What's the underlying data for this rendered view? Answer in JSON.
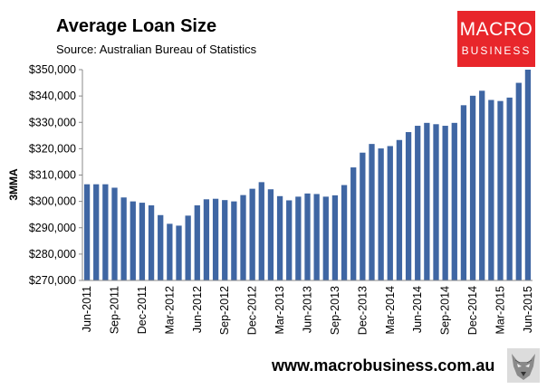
{
  "header": {
    "title": "Average Loan Size",
    "source": "Source: Australian Bureau of Statistics"
  },
  "logo": {
    "line1": "MACRO",
    "line2": "BUSINESS"
  },
  "footer": {
    "url": "www.macrobusiness.com.au"
  },
  "colors": {
    "bar": "#3f66a3",
    "logo_bg": "#e8262b"
  },
  "icons": {
    "mascot": "wolf-icon"
  },
  "chart_data": {
    "type": "bar",
    "title": "Average Loan Size",
    "ylabel": "3MMA",
    "xlabel": "",
    "ylim": [
      270000,
      350000
    ],
    "yticks": [
      270000,
      280000,
      290000,
      300000,
      310000,
      320000,
      330000,
      340000,
      350000
    ],
    "ytick_labels": [
      "$270,000",
      "$280,000",
      "$290,000",
      "$300,000",
      "$310,000",
      "$320,000",
      "$330,000",
      "$340,000",
      "$350,000"
    ],
    "xtick_labels": [
      {
        "index": 0,
        "label": "Jun-2011"
      },
      {
        "index": 3,
        "label": "Sep-2011"
      },
      {
        "index": 6,
        "label": "Dec-2011"
      },
      {
        "index": 9,
        "label": "Mar-2012"
      },
      {
        "index": 12,
        "label": "Jun-2012"
      },
      {
        "index": 15,
        "label": "Sep-2012"
      },
      {
        "index": 18,
        "label": "Dec-2012"
      },
      {
        "index": 21,
        "label": "Mar-2013"
      },
      {
        "index": 24,
        "label": "Jun-2013"
      },
      {
        "index": 27,
        "label": "Sep-2013"
      },
      {
        "index": 30,
        "label": "Dec-2013"
      },
      {
        "index": 33,
        "label": "Mar-2014"
      },
      {
        "index": 36,
        "label": "Jun-2014"
      },
      {
        "index": 39,
        "label": "Sep-2014"
      },
      {
        "index": 42,
        "label": "Dec-2014"
      },
      {
        "index": 45,
        "label": "Mar-2015"
      },
      {
        "index": 48,
        "label": "Jun-2015"
      }
    ],
    "categories": [
      "Jun-2011",
      "Jul-2011",
      "Aug-2011",
      "Sep-2011",
      "Oct-2011",
      "Nov-2011",
      "Dec-2011",
      "Jan-2012",
      "Feb-2012",
      "Mar-2012",
      "Apr-2012",
      "May-2012",
      "Jun-2012",
      "Jul-2012",
      "Aug-2012",
      "Sep-2012",
      "Oct-2012",
      "Nov-2012",
      "Dec-2012",
      "Jan-2013",
      "Feb-2013",
      "Mar-2013",
      "Apr-2013",
      "May-2013",
      "Jun-2013",
      "Jul-2013",
      "Aug-2013",
      "Sep-2013",
      "Oct-2013",
      "Nov-2013",
      "Dec-2013",
      "Jan-2014",
      "Feb-2014",
      "Mar-2014",
      "Apr-2014",
      "May-2014",
      "Jun-2014",
      "Jul-2014",
      "Aug-2014",
      "Sep-2014",
      "Oct-2014",
      "Nov-2014",
      "Dec-2014",
      "Jan-2015",
      "Feb-2015",
      "Mar-2015",
      "Apr-2015",
      "May-2015",
      "Jun-2015"
    ],
    "values": [
      306500,
      306500,
      306500,
      305200,
      301500,
      300000,
      299500,
      298500,
      294800,
      291500,
      290800,
      294600,
      298500,
      300800,
      301000,
      300500,
      300000,
      302400,
      304800,
      307300,
      304600,
      302000,
      300400,
      301800,
      303000,
      302800,
      301800,
      302300,
      306200,
      312900,
      318500,
      321800,
      320100,
      321000,
      323300,
      326300,
      328700,
      329800,
      329300,
      328700,
      329800,
      336500,
      340100,
      342000,
      338500,
      338100,
      339400,
      345000,
      350000
    ]
  }
}
